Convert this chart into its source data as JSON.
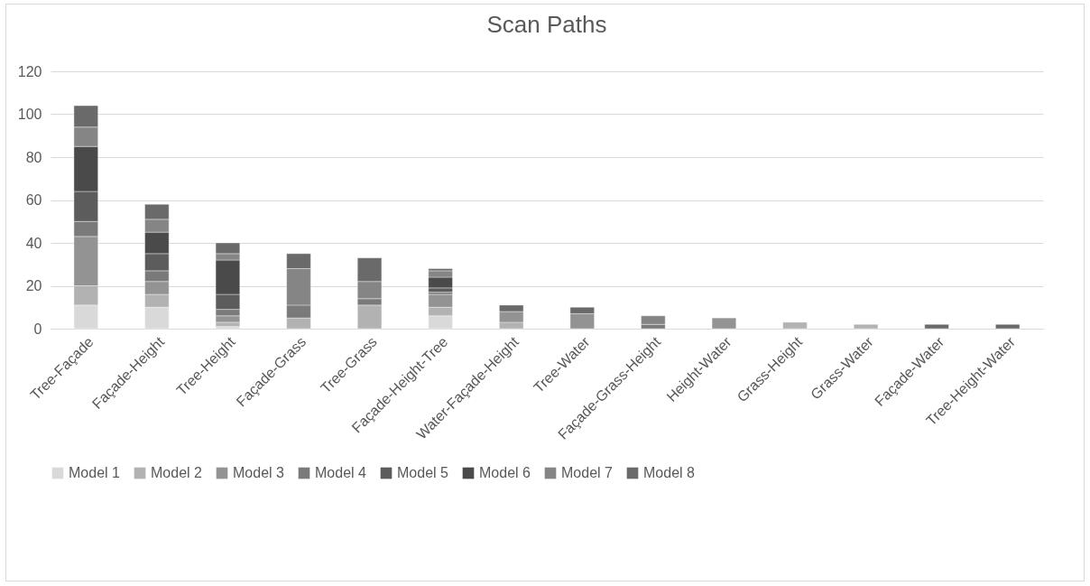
{
  "chart_data": {
    "type": "bar",
    "title": "Scan Paths",
    "stacked": true,
    "legend": "bottom",
    "grid": "y",
    "categories": [
      "Tree-Façade",
      "Façade-Height",
      "Tree-Height",
      "Façade-Grass",
      "Tree-Grass",
      "Façade-Height-Tree",
      "Water-Façade-Height",
      "Tree-Water",
      "Façade-Grass-Height",
      "Height-Water",
      "Grass-Height",
      "Grass-Water",
      "Façade-Water",
      "Tree-Height-Water"
    ],
    "ylim": [
      0,
      120
    ],
    "yticks": [
      0,
      20,
      40,
      60,
      80,
      100,
      120
    ],
    "series": [
      {
        "name": "Model 1",
        "color": "#d9d9d9",
        "values": [
          11,
          10,
          1,
          null,
          null,
          6,
          null,
          null,
          null,
          null,
          null,
          null,
          null,
          null
        ]
      },
      {
        "name": "Model 2",
        "color": "#b2b2b2",
        "values": [
          9,
          6,
          2,
          5,
          11,
          4,
          3,
          null,
          null,
          null,
          3,
          2,
          null,
          null
        ]
      },
      {
        "name": "Model 3",
        "color": "#939393",
        "values": [
          23,
          6,
          3,
          null,
          null,
          6,
          5,
          7,
          null,
          5,
          null,
          null,
          null,
          null
        ]
      },
      {
        "name": "Model 4",
        "color": "#7a7a7a",
        "values": [
          7,
          5,
          3,
          6,
          3,
          1,
          null,
          null,
          2,
          null,
          null,
          null,
          null,
          null
        ]
      },
      {
        "name": "Model 5",
        "color": "#5c5c5c",
        "values": [
          14,
          8,
          7,
          null,
          null,
          2,
          null,
          null,
          null,
          null,
          null,
          null,
          null,
          null
        ]
      },
      {
        "name": "Model 6",
        "color": "#4a4a4a",
        "values": [
          21,
          10,
          16,
          null,
          null,
          5,
          null,
          null,
          null,
          null,
          null,
          null,
          null,
          null
        ]
      },
      {
        "name": "Model 7",
        "color": "#858585",
        "values": [
          9,
          6,
          3,
          17,
          8,
          3,
          null,
          null,
          4,
          null,
          null,
          null,
          null,
          null
        ]
      },
      {
        "name": "Model 8",
        "color": "#6a6a6a",
        "values": [
          10,
          7,
          5,
          7,
          11,
          1,
          3,
          3,
          null,
          null,
          null,
          null,
          2,
          2
        ]
      }
    ]
  }
}
